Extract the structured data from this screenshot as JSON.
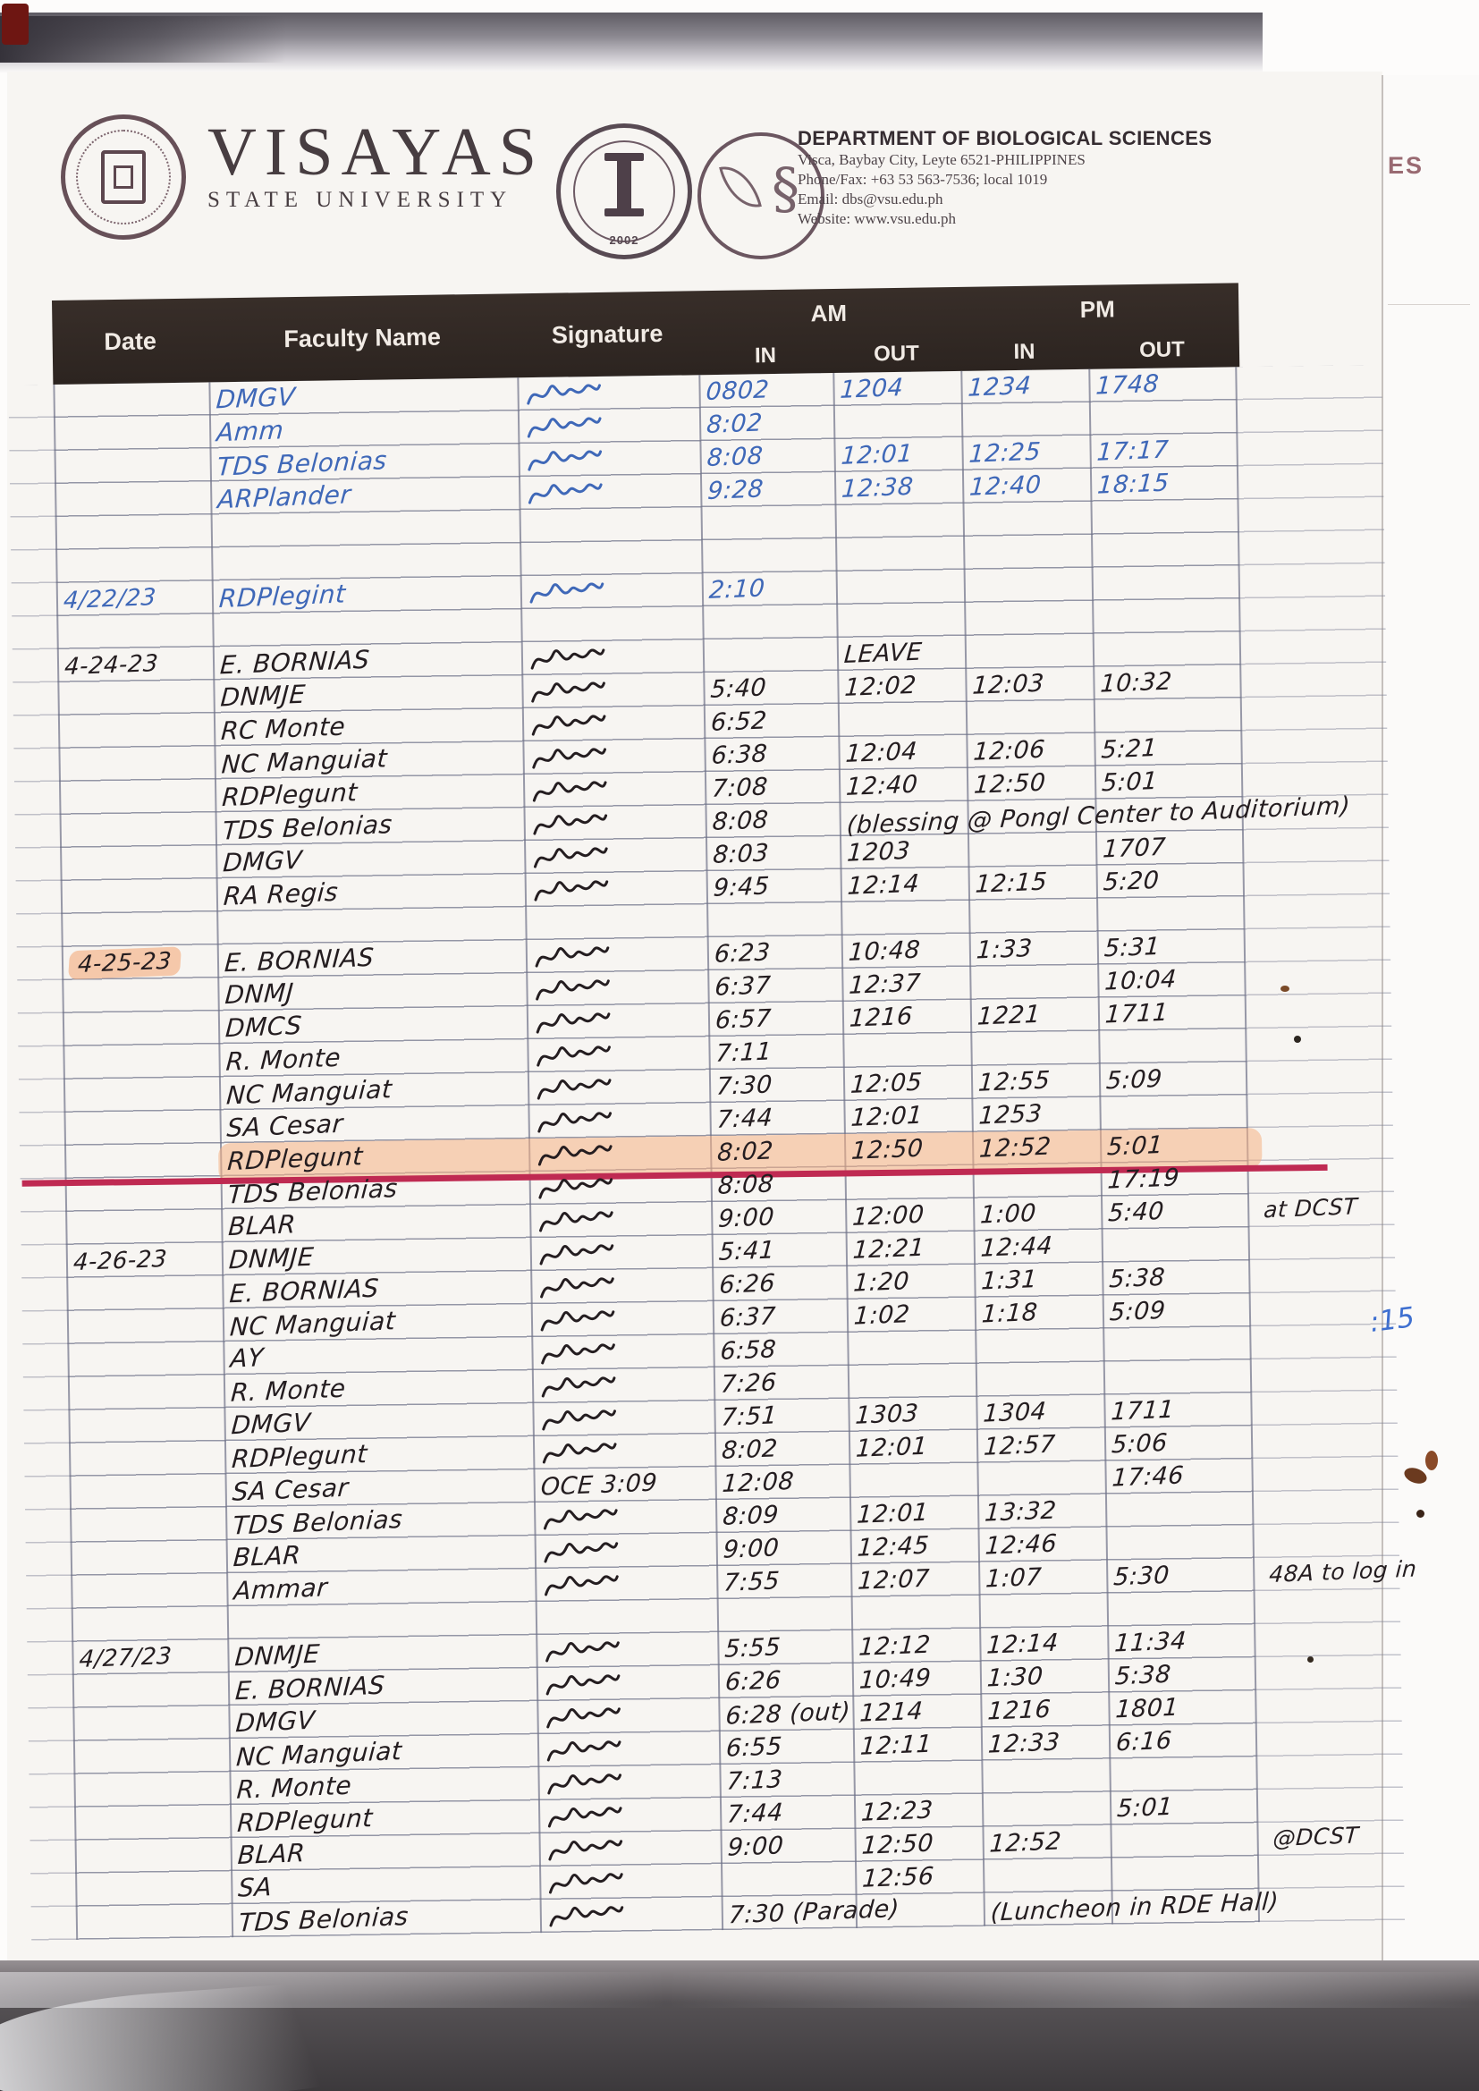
{
  "org": {
    "university_name": "VISAYAS",
    "university_sub": "STATE UNIVERSITY",
    "department": "DEPARTMENT OF BIOLOGICAL SCIENCES",
    "address": "Visca, Baybay City, Leyte 6521-PHILIPPINES",
    "phone": "Phone/Fax: +63 53  563-7536; local 1019",
    "email": "Email: dbs@vsu.edu.ph",
    "website": "Website: www.vsu.edu.ph",
    "cas_seal_year": "2002"
  },
  "artifacts": {
    "page_behind_text": "ES",
    "margin_note_blue": ":15"
  },
  "colors": {
    "highlight": "#f2a678",
    "red_line": "#bf2a52",
    "blue_ink": "#3f68b8",
    "black_ink": "#241d20",
    "header_bar": "#2e2622"
  },
  "table": {
    "headers": {
      "date": "Date",
      "faculty": "Faculty Name",
      "signature": "Signature",
      "am": "AM",
      "pm": "PM",
      "in1": "IN",
      "out1": "OUT",
      "in2": "IN",
      "out2": "OUT"
    },
    "rows": [
      {
        "ink": "blue",
        "name": "DMGV",
        "sig": true,
        "am_in": "0802",
        "am_out": "1204",
        "pm_in": "1234",
        "pm_out": "1748"
      },
      {
        "ink": "blue",
        "name": "Amm",
        "sig": true,
        "am_in": "8:02"
      },
      {
        "ink": "blue",
        "name": "TDS Belonias",
        "sig": true,
        "am_in": "8:08",
        "am_out": "12:01",
        "pm_in": "12:25",
        "pm_out": "17:17"
      },
      {
        "ink": "blue",
        "name": "ARPlander",
        "sig": true,
        "am_in": "9:28",
        "am_out": "12:38",
        "pm_in": "12:40",
        "pm_out": "18:15"
      },
      {
        "tallblank": true
      },
      {
        "ink": "blue",
        "date": "4/22/23",
        "name": "RDPlegint",
        "sig": true,
        "am_in": "2:10"
      },
      {
        "blank": true
      },
      {
        "date": "4-24-23",
        "name": "E. BORNIAS",
        "sig": true,
        "am_out": "LEAVE"
      },
      {
        "name": "DNMJE",
        "sig": true,
        "am_in": "5:40",
        "am_out": "12:02",
        "pm_in": "12:03",
        "pm_out": "10:32"
      },
      {
        "name": "RC Monte",
        "sig": true,
        "am_in": "6:52"
      },
      {
        "name": "NC Manguiat",
        "sig": true,
        "am_in": "6:38",
        "am_out": "12:04",
        "pm_in": "12:06",
        "pm_out": "5:21"
      },
      {
        "name": "RDPlegunt",
        "sig": true,
        "am_in": "7:08",
        "am_out": "12:40",
        "pm_in": "12:50",
        "pm_out": "5:01"
      },
      {
        "name": "TDS Belonias",
        "sig": true,
        "am_in": "8:08",
        "am_out": "(blessing @ Pongl Center to Auditorium)"
      },
      {
        "name": "DMGV",
        "sig": true,
        "am_in": "8:03",
        "am_out": "1203",
        "pm_out": "1707"
      },
      {
        "name": "RA Regis",
        "sig": true,
        "am_in": "9:45",
        "am_out": "12:14",
        "pm_in": "12:15",
        "pm_out": "5:20"
      },
      {
        "blank": true
      },
      {
        "date": "4-25-23",
        "date_highlight": true,
        "name": "E. BORNIAS",
        "sig": true,
        "am_in": "6:23",
        "am_out": "10:48",
        "pm_in": "1:33",
        "pm_out": "5:31"
      },
      {
        "name": "DNMJ",
        "sig": true,
        "am_in": "6:37",
        "am_out": "12:37",
        "pm_out": "10:04"
      },
      {
        "name": "DMCS",
        "sig": true,
        "am_in": "6:57",
        "am_out": "1216",
        "pm_in": "1221",
        "pm_out": "1711"
      },
      {
        "name": "R. Monte",
        "sig": true,
        "am_in": "7:11"
      },
      {
        "name": "NC Manguiat",
        "sig": true,
        "am_in": "7:30",
        "am_out": "12:05",
        "pm_in": "12:55",
        "pm_out": "5:09"
      },
      {
        "name": "SA Cesar",
        "sig": true,
        "am_in": "7:44",
        "am_out": "12:01",
        "pm_in": "1253"
      },
      {
        "name": "RDPlegunt",
        "sig": true,
        "highlight": true,
        "redline": true,
        "am_in": "8:02",
        "am_out": "12:50",
        "pm_in": "12:52",
        "pm_out": "5:01"
      },
      {
        "name": "TDS Belonias",
        "sig": true,
        "am_in": "8:08",
        "pm_out": "17:19"
      },
      {
        "name": "BLAR",
        "sig": true,
        "am_in": "9:00",
        "am_out": "12:00",
        "pm_in": "1:00",
        "pm_out": "5:40",
        "note": "at DCST"
      },
      {
        "date": "4-26-23",
        "name": "DNMJE",
        "sig": true,
        "am_in": "5:41",
        "am_out": "12:21",
        "pm_in": "12:44"
      },
      {
        "name": "E. BORNIAS",
        "sig": true,
        "am_in": "6:26",
        "am_out": "1:20",
        "pm_in": "1:31",
        "pm_out": "5:38"
      },
      {
        "name": "NC Manguiat",
        "sig": true,
        "am_in": "6:37",
        "am_out": "1:02",
        "pm_in": "1:18",
        "pm_out": "5:09"
      },
      {
        "name": "AY",
        "sig": true,
        "am_in": "6:58"
      },
      {
        "name": "R. Monte",
        "sig": true,
        "am_in": "7:26"
      },
      {
        "name": "DMGV",
        "sig": true,
        "am_in": "7:51",
        "am_out": "1303",
        "pm_in": "1304",
        "pm_out": "1711"
      },
      {
        "name": "RDPlegunt",
        "sig": true,
        "am_in": "8:02",
        "am_out": "12:01",
        "pm_in": "12:57",
        "pm_out": "5:06"
      },
      {
        "name": "SA Cesar",
        "sig_text": "OCE 3:09",
        "am_in": "12:08",
        "pm_out": "17:46"
      },
      {
        "name": "TDS Belonias",
        "sig": true,
        "am_in": "8:09",
        "am_out": "12:01",
        "pm_in": "13:32"
      },
      {
        "name": "BLAR",
        "sig": true,
        "am_in": "9:00",
        "am_out": "12:45",
        "pm_in": "12:46"
      },
      {
        "name": "Ammar",
        "sig": true,
        "am_in": "7:55",
        "am_out": "12:07",
        "pm_in": "1:07",
        "pm_out": "5:30",
        "note": "48A to log in"
      },
      {
        "blank": true
      },
      {
        "date": "4/27/23",
        "name": "DNMJE",
        "sig": true,
        "am_in": "5:55",
        "am_out": "12:12",
        "pm_in": "12:14",
        "pm_out": "11:34"
      },
      {
        "name": "E. BORNIAS",
        "sig": true,
        "am_in": "6:26",
        "am_out": "10:49",
        "pm_in": "1:30",
        "pm_out": "5:38"
      },
      {
        "name": "DMGV",
        "sig": true,
        "am_in": "6:28 (out)",
        "am_out": "1214",
        "pm_in": "1216",
        "pm_out": "1801"
      },
      {
        "name": "NC Manguiat",
        "sig": true,
        "am_in": "6:55",
        "am_out": "12:11",
        "pm_in": "12:33",
        "pm_out": "6:16"
      },
      {
        "name": "R. Monte",
        "sig": true,
        "am_in": "7:13"
      },
      {
        "name": "RDPlegunt",
        "sig": true,
        "am_in": "7:44",
        "am_out": "12:23",
        "pm_out": "5:01"
      },
      {
        "name": "BLAR",
        "sig": true,
        "am_in": "9:00",
        "am_out": "12:50",
        "pm_in": "12:52",
        "note": "@DCST"
      },
      {
        "name": "SA",
        "sig": true,
        "am_out": "12:56"
      },
      {
        "name": "TDS Belonias",
        "sig": true,
        "am_in": "7:30 (Parade)",
        "pm_in": "(Luncheon in RDE Hall)"
      }
    ]
  }
}
